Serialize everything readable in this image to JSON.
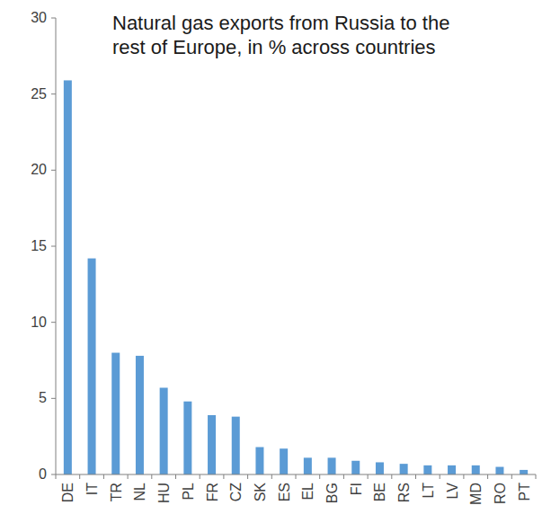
{
  "chart_data": {
    "type": "bar",
    "title": "Natural gas exports from Russia to the rest of Europe, in % across countries",
    "categories": [
      "DE",
      "IT",
      "TR",
      "NL",
      "HU",
      "PL",
      "FR",
      "CZ",
      "SK",
      "ES",
      "EL",
      "BG",
      "FI",
      "BE",
      "RS",
      "LT",
      "LV",
      "MD",
      "RO",
      "PT"
    ],
    "values": [
      25.9,
      14.2,
      8.0,
      7.8,
      5.7,
      4.8,
      3.9,
      3.8,
      1.8,
      1.7,
      1.1,
      1.1,
      0.9,
      0.8,
      0.7,
      0.6,
      0.6,
      0.6,
      0.5,
      0.3
    ],
    "color": "#5b9bd5",
    "ylim": [
      0,
      30
    ],
    "yticks": [
      0,
      5,
      10,
      15,
      20,
      25,
      30
    ],
    "grid": false
  }
}
